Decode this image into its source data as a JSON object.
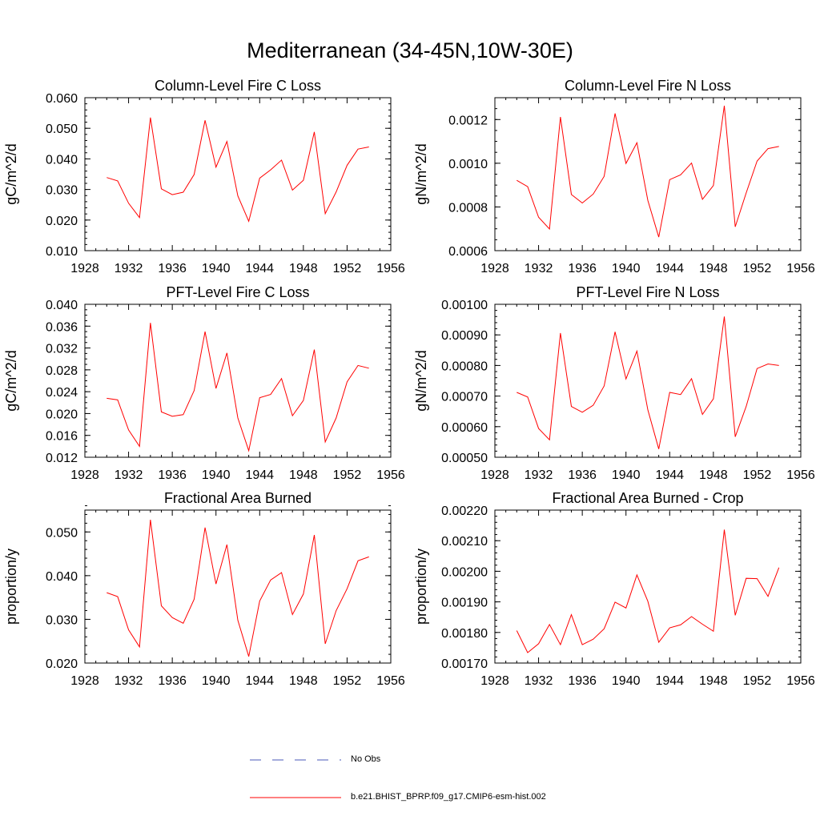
{
  "title": "Mediterranean (34-45N,10W-30E)",
  "legend": {
    "entries": [
      {
        "label": "No Obs",
        "color": "#4a5ab8",
        "style": "dashed"
      },
      {
        "label": "b.e21.BHIST_BPRP.f09_g17.CMIP6-esm-hist.002",
        "color": "#ff0000",
        "style": "solid"
      }
    ]
  },
  "chart_data": [
    {
      "type": "line",
      "title": "Column-Level Fire C Loss",
      "ylabel": "gC/m^2/d",
      "xlim": [
        1928,
        1956
      ],
      "ylim": [
        0.01,
        0.06
      ],
      "xticks": [
        "1928",
        "1932",
        "1936",
        "1940",
        "1944",
        "1948",
        "1952",
        "1956"
      ],
      "yticks": [
        "0.010",
        "0.020",
        "0.030",
        "0.040",
        "0.050",
        "0.060"
      ],
      "minor_y": 0.002,
      "x": [
        1930,
        1931,
        1932,
        1933,
        1934,
        1935,
        1936,
        1937,
        1938,
        1939,
        1940,
        1941,
        1942,
        1943,
        1944,
        1945,
        1946,
        1947,
        1948,
        1949,
        1950,
        1951,
        1952,
        1953,
        1954
      ],
      "series": [
        {
          "name": "b.e21.BHIST_BPRP.f09_g17.CMIP6-esm-hist.002",
          "color": "#ff0000",
          "values": [
            0.0339,
            0.0328,
            0.0255,
            0.0208,
            0.0535,
            0.0302,
            0.0283,
            0.0291,
            0.0349,
            0.0526,
            0.0373,
            0.0457,
            0.0279,
            0.0196,
            0.0337,
            0.0364,
            0.0396,
            0.0298,
            0.033,
            0.0488,
            0.0221,
            0.0292,
            0.0379,
            0.0432,
            0.0439
          ]
        }
      ]
    },
    {
      "type": "line",
      "title": "Column-Level Fire N Loss",
      "ylabel": "gN/m^2/d",
      "xlim": [
        1928,
        1956
      ],
      "ylim": [
        0.0006,
        0.0013
      ],
      "xticks": [
        "1928",
        "1932",
        "1936",
        "1940",
        "1944",
        "1948",
        "1952",
        "1956"
      ],
      "yticks": [
        "0.0006",
        "0.0008",
        "0.0010",
        "0.0012"
      ],
      "minor_y": 5e-05,
      "x": [
        1930,
        1931,
        1932,
        1933,
        1934,
        1935,
        1936,
        1937,
        1938,
        1939,
        1940,
        1941,
        1942,
        1943,
        1944,
        1945,
        1946,
        1947,
        1948,
        1949,
        1950,
        1951,
        1952,
        1953,
        1954
      ],
      "series": [
        {
          "name": "b.e21.BHIST_BPRP.f09_g17.CMIP6-esm-hist.002",
          "color": "#ff0000",
          "values": [
            0.000922,
            0.000893,
            0.000753,
            0.000699,
            0.001212,
            0.000857,
            0.000818,
            0.000859,
            0.00094,
            0.001228,
            0.000999,
            0.001094,
            0.00083,
            0.000662,
            0.000925,
            0.000947,
            0.001001,
            0.000835,
            0.000898,
            0.001263,
            0.000709,
            0.000864,
            0.00101,
            0.001067,
            0.001077
          ]
        }
      ]
    },
    {
      "type": "line",
      "title": "PFT-Level Fire C Loss",
      "ylabel": "gC/m^2/d",
      "xlim": [
        1928,
        1956
      ],
      "ylim": [
        0.012,
        0.04
      ],
      "xticks": [
        "1928",
        "1932",
        "1936",
        "1940",
        "1944",
        "1948",
        "1952",
        "1956"
      ],
      "yticks": [
        "0.012",
        "0.016",
        "0.020",
        "0.024",
        "0.028",
        "0.032",
        "0.036",
        "0.040"
      ],
      "minor_y": 0.001,
      "x": [
        1930,
        1931,
        1932,
        1933,
        1934,
        1935,
        1936,
        1937,
        1938,
        1939,
        1940,
        1941,
        1942,
        1943,
        1944,
        1945,
        1946,
        1947,
        1948,
        1949,
        1950,
        1951,
        1952,
        1953,
        1954
      ],
      "series": [
        {
          "name": "b.e21.BHIST_BPRP.f09_g17.CMIP6-esm-hist.002",
          "color": "#ff0000",
          "values": [
            0.0228,
            0.0225,
            0.017,
            0.014,
            0.0366,
            0.0203,
            0.0195,
            0.0198,
            0.0242,
            0.035,
            0.0246,
            0.0311,
            0.0192,
            0.0132,
            0.0229,
            0.0235,
            0.0264,
            0.0196,
            0.0224,
            0.0317,
            0.0148,
            0.0192,
            0.0258,
            0.0288,
            0.0283
          ]
        }
      ]
    },
    {
      "type": "line",
      "title": "PFT-Level Fire N Loss",
      "ylabel": "gN/m^2/d",
      "xlim": [
        1928,
        1956
      ],
      "ylim": [
        0.0005,
        0.001
      ],
      "xticks": [
        "1928",
        "1932",
        "1936",
        "1940",
        "1944",
        "1948",
        "1952",
        "1956"
      ],
      "yticks": [
        "0.00050",
        "0.00060",
        "0.00070",
        "0.00080",
        "0.00090",
        "0.00100"
      ],
      "minor_y": 2e-05,
      "x": [
        1930,
        1931,
        1932,
        1933,
        1934,
        1935,
        1936,
        1937,
        1938,
        1939,
        1940,
        1941,
        1942,
        1943,
        1944,
        1945,
        1946,
        1947,
        1948,
        1949,
        1950,
        1951,
        1952,
        1953,
        1954
      ],
      "series": [
        {
          "name": "b.e21.BHIST_BPRP.f09_g17.CMIP6-esm-hist.002",
          "color": "#ff0000",
          "values": [
            0.000712,
            0.000697,
            0.000594,
            0.000557,
            0.000906,
            0.000666,
            0.000647,
            0.00067,
            0.000733,
            0.00091,
            0.000756,
            0.000847,
            0.000655,
            0.000527,
            0.000712,
            0.000705,
            0.000757,
            0.00064,
            0.000691,
            0.00096,
            0.000567,
            0.000666,
            0.00079,
            0.000805,
            0.0008
          ]
        }
      ]
    },
    {
      "type": "line",
      "title": "Fractional Area Burned",
      "ylabel": "proportion/y",
      "xlim": [
        1928,
        1956
      ],
      "ylim": [
        0.02,
        0.055
      ],
      "xticks": [
        "1928",
        "1932",
        "1936",
        "1940",
        "1944",
        "1948",
        "1952",
        "1956"
      ],
      "yticks": [
        "0.020",
        "0.030",
        "0.040",
        "0.050"
      ],
      "minor_y": 0.002,
      "x": [
        1930,
        1931,
        1932,
        1933,
        1934,
        1935,
        1936,
        1937,
        1938,
        1939,
        1940,
        1941,
        1942,
        1943,
        1944,
        1945,
        1946,
        1947,
        1948,
        1949,
        1950,
        1951,
        1952,
        1953,
        1954
      ],
      "series": [
        {
          "name": "b.e21.BHIST_BPRP.f09_g17.CMIP6-esm-hist.002",
          "color": "#ff0000",
          "values": [
            0.0361,
            0.0352,
            0.0276,
            0.0237,
            0.0528,
            0.0331,
            0.0304,
            0.0291,
            0.0346,
            0.051,
            0.0381,
            0.0471,
            0.0298,
            0.0215,
            0.0342,
            0.039,
            0.0407,
            0.0311,
            0.0358,
            0.0493,
            0.0244,
            0.032,
            0.037,
            0.0434,
            0.0443
          ]
        }
      ]
    },
    {
      "type": "line",
      "title": "Fractional Area Burned - Crop",
      "ylabel": "proportion/y",
      "xlim": [
        1928,
        1956
      ],
      "ylim": [
        0.0017,
        0.0022
      ],
      "xticks": [
        "1928",
        "1932",
        "1936",
        "1940",
        "1944",
        "1948",
        "1952",
        "1956"
      ],
      "yticks": [
        "0.00170",
        "0.00180",
        "0.00190",
        "0.00200",
        "0.00210",
        "0.00220"
      ],
      "minor_y": 2e-05,
      "x": [
        1930,
        1931,
        1932,
        1933,
        1934,
        1935,
        1936,
        1937,
        1938,
        1939,
        1940,
        1941,
        1942,
        1943,
        1944,
        1945,
        1946,
        1947,
        1948,
        1949,
        1950,
        1951,
        1952,
        1953,
        1954
      ],
      "series": [
        {
          "name": "b.e21.BHIST_BPRP.f09_g17.CMIP6-esm-hist.002",
          "color": "#ff0000",
          "values": [
            0.001806,
            0.001734,
            0.001763,
            0.001826,
            0.00176,
            0.001858,
            0.00176,
            0.001778,
            0.001812,
            0.001899,
            0.00188,
            0.001988,
            0.001902,
            0.001768,
            0.001815,
            0.001825,
            0.001852,
            0.001827,
            0.001804,
            0.002136,
            0.001856,
            0.001977,
            0.001976,
            0.001918,
            0.002012
          ]
        }
      ]
    }
  ]
}
